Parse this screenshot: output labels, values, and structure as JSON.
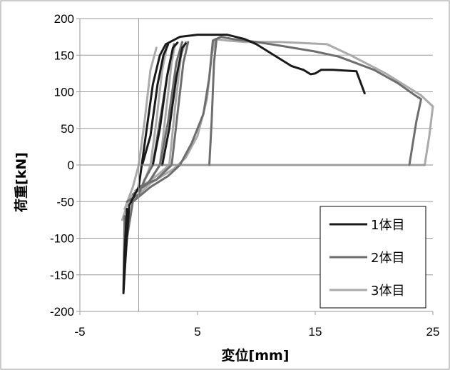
{
  "chart_data": {
    "type": "line",
    "title": "",
    "xlabel": "変位[mm]",
    "ylabel": "荷重[kN]",
    "xlim": [
      -5,
      25
    ],
    "ylim": [
      -200,
      200
    ],
    "x_ticks": [
      -5,
      5,
      15,
      25
    ],
    "y_ticks": [
      200,
      150,
      100,
      50,
      0,
      -50,
      -100,
      -150,
      -200
    ],
    "x_tick_labels": [
      "-5",
      "5",
      "15",
      "25"
    ],
    "y_tick_labels": [
      "200",
      "150",
      "100",
      "50",
      "0",
      "-50",
      "-100",
      "-150",
      "-200"
    ],
    "grid": "horizontal",
    "legend_position": "bottom-right",
    "series": [
      {
        "name": "1体目",
        "color": "#1a1a1a",
        "loops": [
          [
            [
              -1,
              -60
            ],
            [
              -1.2,
              -120
            ],
            [
              -1.3,
              -175
            ],
            [
              -1.1,
              -120
            ],
            [
              -0.8,
              -55
            ],
            [
              0,
              -30
            ],
            [
              0.6,
              40
            ],
            [
              1.2,
              110
            ],
            [
              1.8,
              150
            ],
            [
              2.3,
              165
            ],
            [
              3.5,
              175
            ],
            [
              5,
              178
            ],
            [
              6,
              178
            ],
            [
              7.5,
              178
            ],
            [
              9,
              172
            ],
            [
              10,
              165
            ],
            [
              11,
              155
            ],
            [
              12,
              145
            ],
            [
              13,
              135
            ],
            [
              14,
              130
            ],
            [
              14.6,
              124
            ],
            [
              15,
              125
            ],
            [
              15.5,
              130
            ],
            [
              16.5,
              130
            ],
            [
              18.5,
              128
            ],
            [
              19.2,
              98
            ]
          ],
          [
            [
              0.3,
              0
            ],
            [
              1,
              40
            ],
            [
              1.6,
              110
            ],
            [
              2.1,
              150
            ],
            [
              2.5,
              165
            ]
          ],
          [
            [
              1.2,
              0
            ],
            [
              1.8,
              50
            ],
            [
              2.4,
              120
            ],
            [
              2.9,
              160
            ],
            [
              3.3,
              167
            ]
          ],
          [
            [
              2,
              0
            ],
            [
              2.6,
              50
            ],
            [
              3.2,
              120
            ],
            [
              3.7,
              160
            ],
            [
              4,
              166
            ]
          ]
        ]
      },
      {
        "name": "2体目",
        "color": "#6e6e6e",
        "loops": [
          [
            [
              -1.2,
              -70
            ],
            [
              -1.3,
              -170
            ],
            [
              -1.0,
              -100
            ],
            [
              -0.5,
              -50
            ],
            [
              1,
              -30
            ],
            [
              2.5,
              -15
            ],
            [
              3.5,
              0
            ],
            [
              4.5,
              30
            ],
            [
              5.5,
              70
            ],
            [
              6,
              120
            ],
            [
              6.3,
              170
            ],
            [
              7,
              175
            ],
            [
              8,
              172
            ],
            [
              10,
              168
            ],
            [
              12,
              163
            ],
            [
              15,
              155
            ],
            [
              17,
              148
            ],
            [
              20,
              130
            ],
            [
              22,
              112
            ],
            [
              23.5,
              95
            ],
            [
              24,
              90
            ],
            [
              23.6,
              60
            ],
            [
              23.2,
              20
            ],
            [
              23,
              0
            ]
          ],
          [
            [
              -1,
              -50
            ],
            [
              0,
              -40
            ],
            [
              0.5,
              -20
            ],
            [
              1.2,
              0
            ],
            [
              1.8,
              60
            ],
            [
              2.5,
              130
            ],
            [
              3,
              165
            ]
          ],
          [
            [
              -0.5,
              -40
            ],
            [
              0.8,
              -25
            ],
            [
              1.8,
              0
            ],
            [
              2.5,
              60
            ],
            [
              3.2,
              140
            ],
            [
              3.7,
              168
            ]
          ],
          [
            [
              0,
              -30
            ],
            [
              1.5,
              -20
            ],
            [
              2.8,
              0
            ],
            [
              3.3,
              70
            ],
            [
              3.8,
              140
            ],
            [
              4.2,
              168
            ]
          ],
          [
            [
              6,
              0
            ],
            [
              6.2,
              60
            ],
            [
              6.4,
              140
            ],
            [
              6.6,
              170
            ]
          ]
        ]
      },
      {
        "name": "3体目",
        "color": "#aaaaaa",
        "loops": [
          [
            [
              -1.4,
              -75
            ],
            [
              -1.0,
              -55
            ],
            [
              0,
              -40
            ],
            [
              1,
              -25
            ],
            [
              2,
              -15
            ],
            [
              3,
              -5
            ],
            [
              4,
              10
            ],
            [
              5,
              40
            ],
            [
              5.8,
              90
            ],
            [
              6.2,
              150
            ],
            [
              6.5,
              172
            ],
            [
              7.5,
              170
            ],
            [
              9,
              168
            ],
            [
              12,
              168
            ],
            [
              16,
              165
            ],
            [
              18,
              150
            ],
            [
              21,
              125
            ],
            [
              23,
              105
            ],
            [
              24,
              95
            ],
            [
              25,
              80
            ],
            [
              24.7,
              40
            ],
            [
              24.3,
              0
            ]
          ],
          [
            [
              -1.2,
              -60
            ],
            [
              -0.5,
              -30
            ],
            [
              0,
              0
            ],
            [
              0.5,
              60
            ],
            [
              1,
              130
            ],
            [
              1.5,
              160
            ]
          ],
          [
            [
              -0.8,
              -45
            ],
            [
              0.3,
              -30
            ],
            [
              1,
              0
            ],
            [
              1.5,
              60
            ],
            [
              2,
              130
            ],
            [
              2.4,
              162
            ]
          ],
          [
            [
              -0.3,
              -35
            ],
            [
              0.8,
              -25
            ],
            [
              1.8,
              0
            ],
            [
              2.3,
              70
            ],
            [
              2.8,
              140
            ],
            [
              3.1,
              165
            ]
          ],
          [
            [
              0.2,
              -30
            ],
            [
              1.5,
              -15
            ],
            [
              2.6,
              0
            ],
            [
              3.1,
              80
            ],
            [
              3.6,
              150
            ],
            [
              4,
              168
            ]
          ],
          [
            [
              0.5,
              0
            ],
            [
              3,
              0
            ],
            [
              6,
              0
            ],
            [
              12,
              0
            ],
            [
              18,
              0
            ],
            [
              22,
              0
            ],
            [
              24.3,
              0
            ]
          ]
        ]
      }
    ]
  }
}
